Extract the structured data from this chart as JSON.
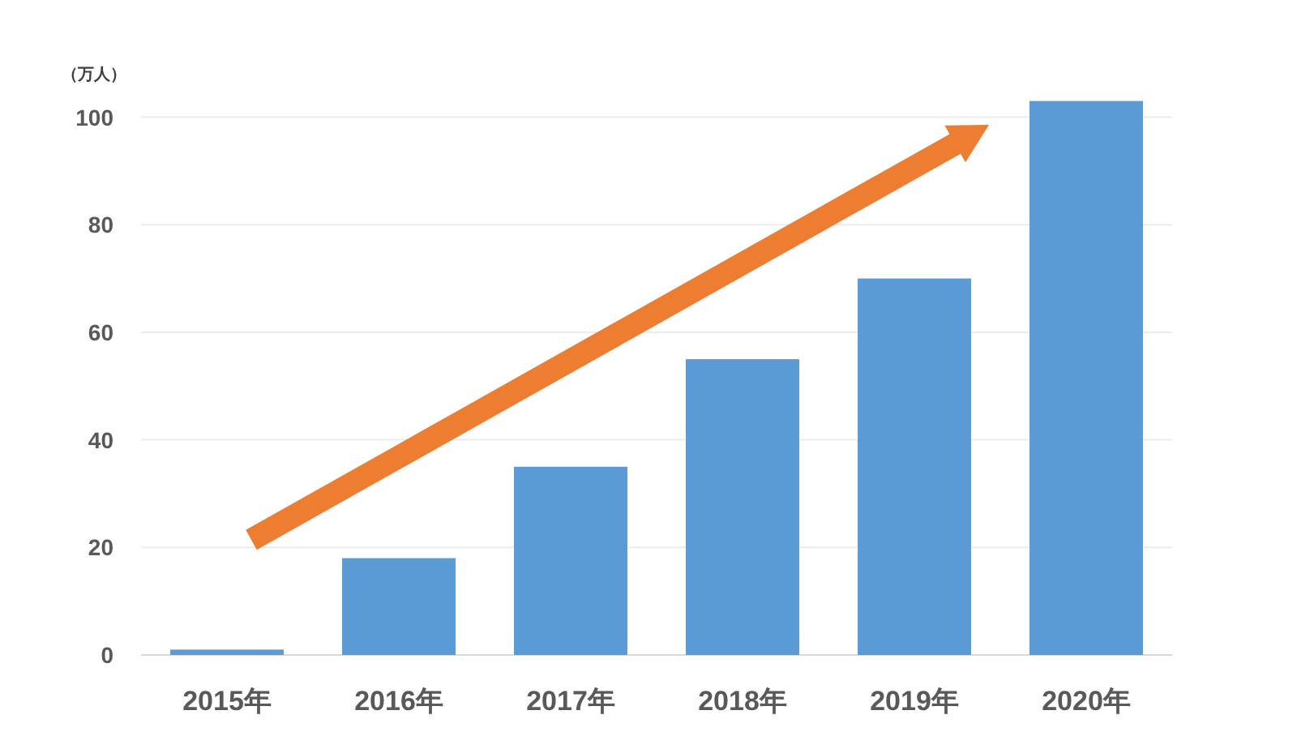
{
  "chart_data": {
    "type": "bar",
    "ylabel": "（万人）",
    "categories": [
      "2015年",
      "2016年",
      "2017年",
      "2018年",
      "2019年",
      "2020年"
    ],
    "values": [
      1,
      18,
      35,
      55,
      70,
      103
    ],
    "color": "#5b9bd5",
    "ylim": [
      0,
      103
    ],
    "yticks": [
      0,
      20,
      40,
      60,
      80,
      100
    ],
    "grid": "y"
  }
}
